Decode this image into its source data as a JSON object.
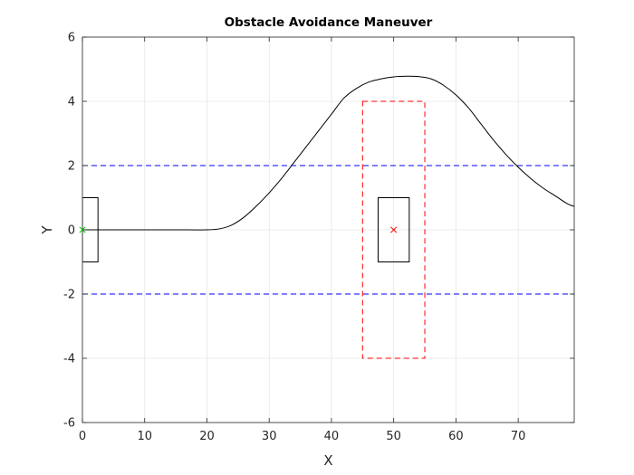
{
  "chart_data": {
    "type": "line",
    "title": "Obstacle Avoidance Maneuver",
    "xlabel": "X",
    "ylabel": "Y",
    "xlim": [
      0,
      79
    ],
    "ylim": [
      -6,
      6
    ],
    "xticks": [
      0,
      10,
      20,
      30,
      40,
      50,
      60,
      70
    ],
    "yticks": [
      -6,
      -4,
      -2,
      0,
      2,
      4,
      6
    ],
    "grid": true,
    "colors": {
      "trajectory": "#000000",
      "lane_boundary": "#0000ff",
      "safety_zone": "#ff0000",
      "start_marker": "#00c000",
      "obstacle_marker": "#ff0000",
      "grid": "#e6e6e6",
      "axes": "#262626"
    },
    "series": [
      {
        "style": "solid-black",
        "x": [
          0,
          5,
          10,
          15,
          20,
          22,
          24,
          26,
          28,
          30,
          32,
          34,
          36,
          38,
          40,
          42,
          44,
          46,
          48,
          50,
          52,
          54,
          56,
          58,
          60,
          62,
          64,
          66,
          68,
          70,
          72,
          74,
          76,
          78,
          79
        ],
        "y": [
          0,
          0,
          0,
          0,
          0,
          0.03,
          0.15,
          0.4,
          0.75,
          1.15,
          1.6,
          2.1,
          2.6,
          3.1,
          3.6,
          4.1,
          4.4,
          4.6,
          4.7,
          4.76,
          4.78,
          4.77,
          4.7,
          4.5,
          4.2,
          3.8,
          3.3,
          2.8,
          2.35,
          1.95,
          1.6,
          1.3,
          1.05,
          0.8,
          0.73
        ]
      },
      {
        "style": "dashed-blue",
        "x": [
          0,
          79
        ],
        "y": [
          2,
          2
        ]
      },
      {
        "style": "dashed-blue",
        "x": [
          0,
          79
        ],
        "y": [
          -2,
          -2
        ]
      }
    ],
    "shapes": [
      {
        "kind": "rectangle",
        "style": "solid-black",
        "x": [
          0,
          2.5
        ],
        "y": [
          -1,
          1
        ]
      },
      {
        "kind": "rectangle",
        "style": "solid-black",
        "x": [
          47.5,
          52.5
        ],
        "y": [
          -1,
          1
        ]
      },
      {
        "kind": "rectangle",
        "style": "dashed-red",
        "x": [
          45,
          55
        ],
        "y": [
          -4,
          4
        ]
      }
    ],
    "markers": [
      {
        "symbol": "x",
        "color": "green",
        "x": 0,
        "y": 0
      },
      {
        "symbol": "x",
        "color": "red",
        "x": 50,
        "y": 0
      }
    ]
  }
}
